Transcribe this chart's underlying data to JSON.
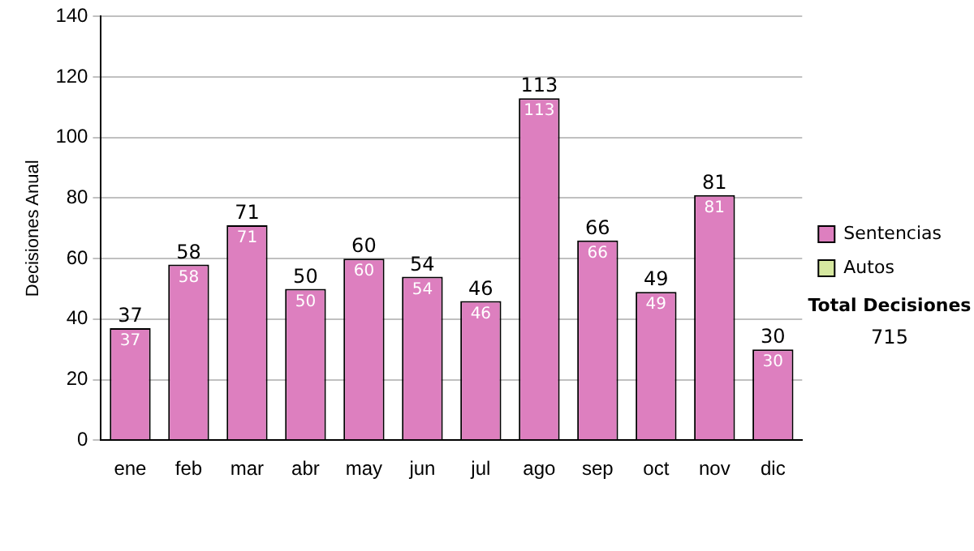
{
  "chart_data": {
    "type": "bar",
    "ylabel": "Decisiones Anual",
    "categories": [
      "ene",
      "feb",
      "mar",
      "abr",
      "may",
      "jun",
      "jul",
      "ago",
      "sep",
      "oct",
      "nov",
      "dic"
    ],
    "series": [
      {
        "name": "Sentencias",
        "color": "#dd7fbf",
        "values": [
          37,
          58,
          71,
          50,
          60,
          54,
          46,
          113,
          66,
          49,
          81,
          30
        ],
        "value_labels": [
          "37",
          "58",
          "71",
          "50",
          "60",
          "54",
          "46",
          "113",
          "66",
          "49",
          "81",
          "30"
        ]
      },
      {
        "name": "Autos",
        "color": "#d6e8a0",
        "values": [
          0,
          0,
          0,
          0,
          0,
          0,
          0,
          0,
          0,
          0,
          0,
          0
        ],
        "value_labels": [
          null,
          null,
          null,
          null,
          null,
          null,
          null,
          null,
          null,
          null,
          null,
          null
        ]
      }
    ],
    "stacked": true,
    "totals": [
      "37",
      "58",
      "71",
      "50",
      "60",
      "54",
      "46",
      "113",
      "66",
      "49",
      "81",
      "30"
    ],
    "ylim": [
      0,
      140
    ],
    "yticks": [
      0,
      20,
      40,
      60,
      80,
      100,
      120,
      140
    ],
    "grid": "y",
    "legend": "right",
    "annotations": [
      "Total Decisiones",
      "715"
    ]
  }
}
